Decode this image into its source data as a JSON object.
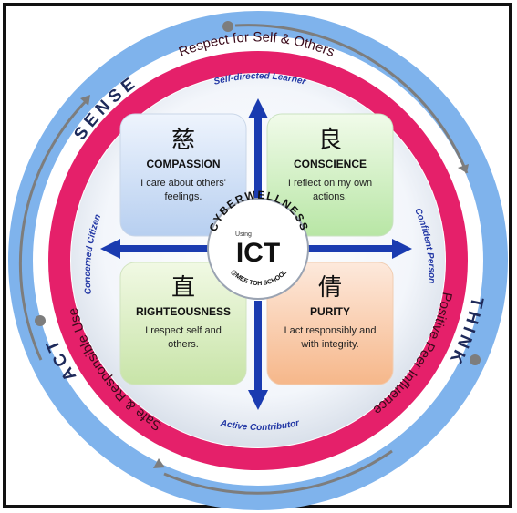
{
  "ring_labels": {
    "outer_sense": "SENSE",
    "outer_think": "THINK",
    "outer_act": "ACT",
    "pink_top": "Respect for Self & Others",
    "pink_right": "Positive Peer Influence",
    "pink_left": "Safe & Responsible Use"
  },
  "axis_labels": {
    "top": "Self-directed Learner",
    "right": "Confident Person",
    "bottom": "Active Contributor",
    "left": "Concerned Citizen"
  },
  "quadrants": [
    {
      "glyph": "慈",
      "title": "COMPASSION",
      "text_lines": [
        "I care about others'",
        "feelings."
      ]
    },
    {
      "glyph": "良",
      "title": "CONSCIENCE",
      "text_lines": [
        "I reflect on my own",
        "actions."
      ]
    },
    {
      "glyph": "直",
      "title": "RIGHTEOUSNESS",
      "text_lines": [
        "I respect self and",
        "others."
      ]
    },
    {
      "glyph": "倩",
      "title": "PURITY",
      "text_lines": [
        "I act responsibly and",
        "with integrity."
      ]
    }
  ],
  "center": {
    "arc_text": "CYBERWELLNESS",
    "using": "Using",
    "main": "ICT",
    "school": "@MEE TOH SCHOOL"
  },
  "colors": {
    "frame": "#111111",
    "outer_ring": "#7fb3ec",
    "pink_ring": "#e5206a",
    "arrow_blue": "#1a3bb0",
    "label_blue": "#2338a5"
  }
}
